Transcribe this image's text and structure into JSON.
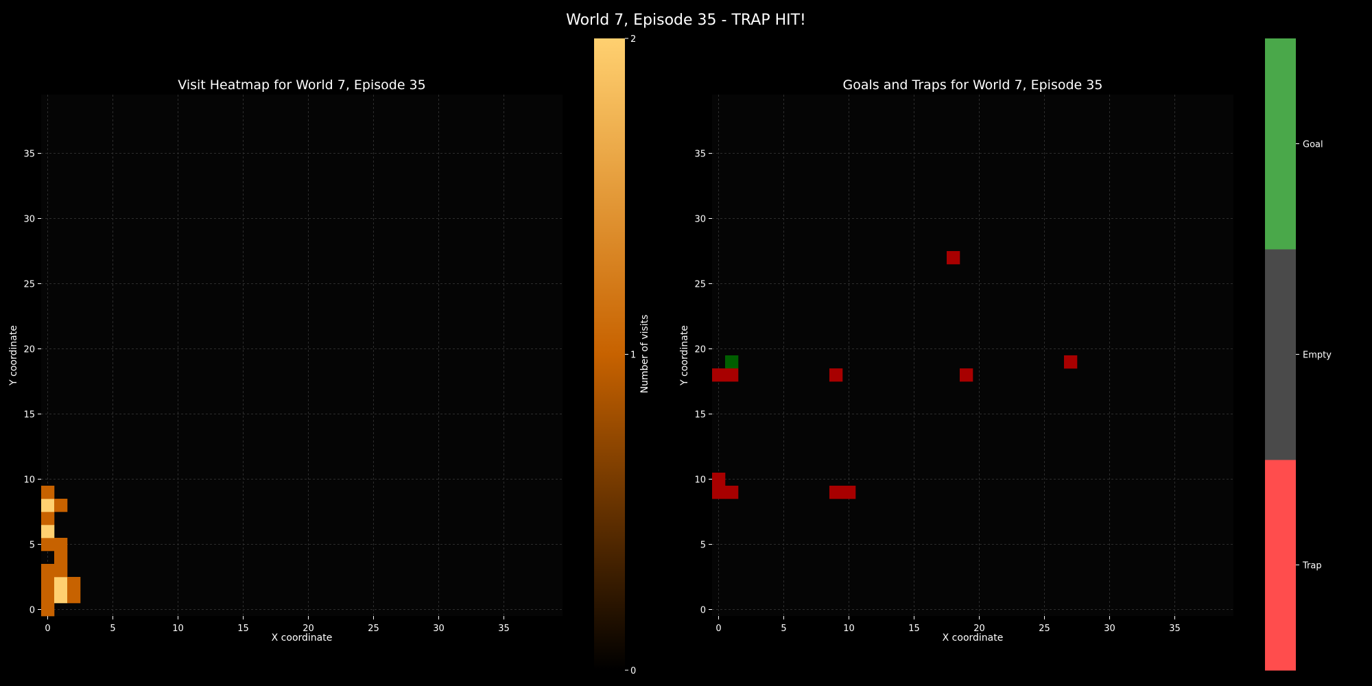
{
  "figure": {
    "title": "World 7, Episode 35 - TRAP HIT!"
  },
  "chart_data": [
    {
      "type": "heatmap",
      "title": "Visit Heatmap for World 7, Episode 35",
      "xlabel": "X coordinate",
      "ylabel": "Y coordinate",
      "xlim": [
        -0.5,
        39.5
      ],
      "ylim": [
        -0.5,
        39.5
      ],
      "xticks": [
        0,
        5,
        10,
        15,
        20,
        25,
        30,
        35
      ],
      "yticks": [
        0,
        5,
        10,
        15,
        20,
        25,
        30,
        35
      ],
      "grid": true,
      "cells": [
        {
          "x": 0,
          "y": 0,
          "v": 1
        },
        {
          "x": 0,
          "y": 1,
          "v": 1
        },
        {
          "x": 0,
          "y": 2,
          "v": 1
        },
        {
          "x": 0,
          "y": 3,
          "v": 1
        },
        {
          "x": 0,
          "y": 5,
          "v": 1
        },
        {
          "x": 0,
          "y": 6,
          "v": 2
        },
        {
          "x": 0,
          "y": 7,
          "v": 1
        },
        {
          "x": 0,
          "y": 8,
          "v": 2
        },
        {
          "x": 0,
          "y": 9,
          "v": 1
        },
        {
          "x": 1,
          "y": 1,
          "v": 2
        },
        {
          "x": 1,
          "y": 2,
          "v": 2
        },
        {
          "x": 1,
          "y": 3,
          "v": 1
        },
        {
          "x": 1,
          "y": 4,
          "v": 1
        },
        {
          "x": 1,
          "y": 5,
          "v": 1
        },
        {
          "x": 1,
          "y": 8,
          "v": 1
        },
        {
          "x": 2,
          "y": 1,
          "v": 1
        },
        {
          "x": 2,
          "y": 2,
          "v": 1
        }
      ],
      "colorbar": {
        "label": "Number of visits",
        "min": 0,
        "max": 2,
        "ticks": [
          "0",
          "1",
          "2"
        ],
        "colors": [
          "#000000",
          "#c76200",
          "#ffd070"
        ]
      }
    },
    {
      "type": "heatmap",
      "title": "Goals and Traps for World 7, Episode 35",
      "xlabel": "X coordinate",
      "ylabel": "Y coordinate",
      "xlim": [
        -0.5,
        39.5
      ],
      "ylim": [
        -0.5,
        39.5
      ],
      "xticks": [
        0,
        5,
        10,
        15,
        20,
        25,
        30,
        35
      ],
      "yticks": [
        0,
        5,
        10,
        15,
        20,
        25,
        30,
        35
      ],
      "grid": true,
      "categories": [
        {
          "name": "Trap",
          "cell_color": "#a80000",
          "bar_color": "#ff4d4d"
        },
        {
          "name": "Empty",
          "cell_color": "#050505",
          "bar_color": "#4a4a4a"
        },
        {
          "name": "Goal",
          "cell_color": "#005e00",
          "bar_color": "#4aa84a"
        }
      ],
      "cells": [
        {
          "x": 1,
          "y": 19,
          "type": "Goal"
        },
        {
          "x": 0,
          "y": 18,
          "type": "Trap"
        },
        {
          "x": 1,
          "y": 18,
          "type": "Trap"
        },
        {
          "x": 0,
          "y": 9,
          "type": "Trap"
        },
        {
          "x": 0,
          "y": 10,
          "type": "Trap"
        },
        {
          "x": 1,
          "y": 9,
          "type": "Trap"
        },
        {
          "x": 9,
          "y": 9,
          "type": "Trap"
        },
        {
          "x": 10,
          "y": 9,
          "type": "Trap"
        },
        {
          "x": 9,
          "y": 18,
          "type": "Trap"
        },
        {
          "x": 18,
          "y": 27,
          "type": "Trap"
        },
        {
          "x": 19,
          "y": 18,
          "type": "Trap"
        },
        {
          "x": 27,
          "y": 19,
          "type": "Trap"
        }
      ]
    }
  ]
}
